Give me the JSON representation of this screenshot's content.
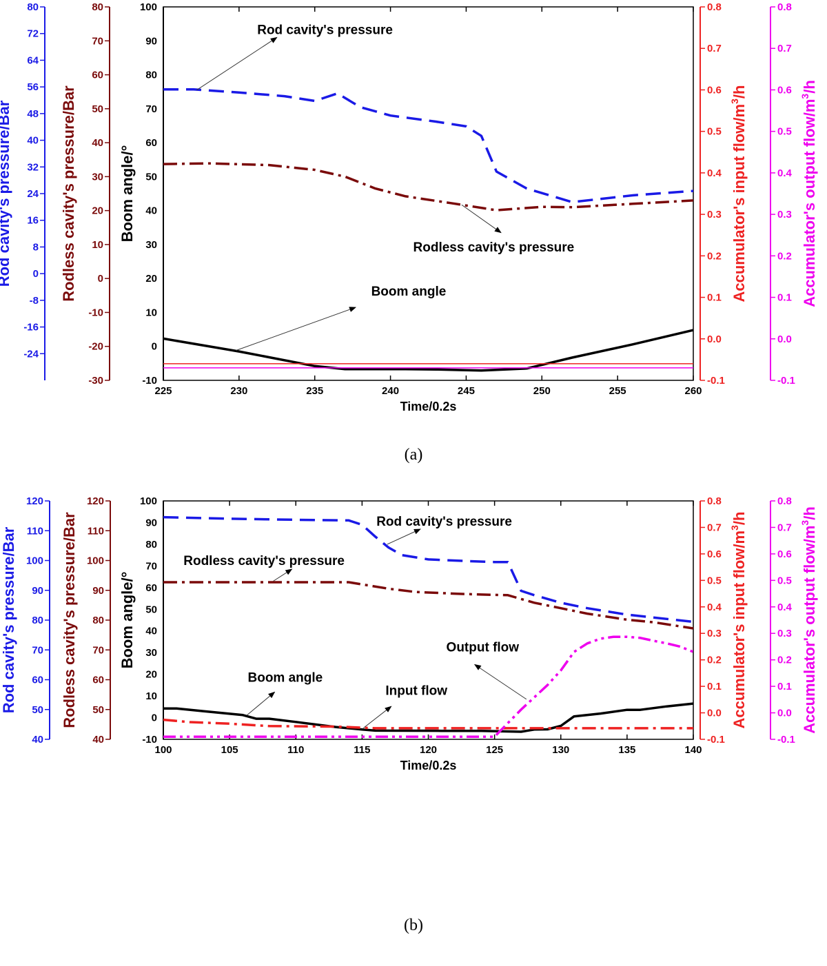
{
  "colors": {
    "rod": "#1a1ae6",
    "rodless": "#7a0a0a",
    "boom": "#000000",
    "input": "#ee2222",
    "output": "#ee00ee"
  },
  "axis_labels": {
    "rod": "Rod cavity's pressure/Bar",
    "rodless": "Rodless cavity's pressure/Bar",
    "boom": "Boom angle/°",
    "input_prefix": "Accumulator's input flow/m",
    "output_prefix": "Accumulator's output flow/m",
    "sup": "3",
    "suffix": "/h",
    "time": "Time/0.2s"
  },
  "chart_data": [
    {
      "id": "a",
      "type": "line",
      "caption": "(a)",
      "xlabel": "Time/0.2s",
      "xlim": [
        225,
        260
      ],
      "xticks": [
        225,
        230,
        235,
        240,
        245,
        250,
        255,
        260
      ],
      "axes": {
        "boom": {
          "range": [
            -10,
            100
          ],
          "ticks": [
            -10,
            0,
            10,
            20,
            30,
            40,
            50,
            60,
            70,
            80,
            90,
            100
          ]
        },
        "rodless": {
          "range": [
            -30,
            80
          ],
          "ticks": [
            -30,
            -20,
            -10,
            0,
            10,
            20,
            30,
            40,
            50,
            60,
            70,
            80
          ]
        },
        "rod": {
          "range": [
            -32,
            80
          ],
          "ticks": [
            -24,
            -16,
            -8,
            0,
            8,
            16,
            24,
            32,
            40,
            48,
            56,
            64,
            72,
            80
          ]
        },
        "input": {
          "range": [
            -0.1,
            0.8
          ],
          "ticks": [
            -0.1,
            0.0,
            0.1,
            0.2,
            0.3,
            0.4,
            0.5,
            0.6,
            0.7,
            0.8
          ]
        },
        "output": {
          "range": [
            -0.1,
            0.8
          ],
          "ticks": [
            -0.1,
            0.0,
            0.1,
            0.2,
            0.3,
            0.4,
            0.5,
            0.6,
            0.7,
            0.8
          ]
        }
      },
      "series": [
        {
          "name": "Rod cavity's pressure",
          "axis": "boom",
          "style": "dash",
          "color": "rod",
          "x": [
            225,
            227,
            230,
            233,
            235,
            236.5,
            238,
            240,
            243,
            245,
            246,
            247,
            249,
            252,
            256,
            260
          ],
          "y": [
            75.7,
            75.7,
            74.8,
            73.7,
            72.3,
            74.5,
            70.5,
            68,
            66.2,
            64.8,
            62,
            51.5,
            46.5,
            42.5,
            44.5,
            45.8
          ]
        },
        {
          "name": "Rodless cavity's pressure",
          "axis": "boom",
          "style": "dashdot",
          "color": "rodless",
          "x": [
            225,
            228,
            232,
            235,
            237,
            239,
            241,
            244,
            247,
            250,
            252,
            256,
            260
          ],
          "y": [
            53.7,
            53.9,
            53.4,
            52,
            50,
            46.5,
            44.2,
            42.2,
            40.1,
            41.1,
            41,
            42,
            43
          ]
        },
        {
          "name": "Boom angle",
          "axis": "boom",
          "style": "solid",
          "color": "boom",
          "x": [
            225,
            230,
            235,
            237,
            241,
            243,
            246,
            249,
            252,
            256,
            260
          ],
          "y": [
            2.3,
            -1.5,
            -5.8,
            -6.7,
            -6.7,
            -6.8,
            -7.1,
            -6.5,
            -3.3,
            0.6,
            4.8
          ]
        },
        {
          "name": "Input flow",
          "axis": "input",
          "style": "thin",
          "color": "input",
          "x": [
            225,
            260
          ],
          "y": [
            -0.06,
            -0.06
          ]
        },
        {
          "name": "Output flow",
          "axis": "output",
          "style": "thin",
          "color": "output",
          "x": [
            225,
            260
          ],
          "y": [
            -0.07,
            -0.07
          ]
        }
      ],
      "annotations": [
        {
          "text": "Rod cavity's pressure",
          "tx": 231.2,
          "ty": 92,
          "anchor": "start",
          "ax": 227.2,
          "ay": 75.5,
          "hx": 232.5,
          "hy": 91
        },
        {
          "text": "Rodless cavity's pressure",
          "tx": 241.5,
          "ty": 28,
          "anchor": "start",
          "ax": 244.7,
          "ay": 41.7,
          "hx": 247.3,
          "hy": 33.5
        },
        {
          "text": "Boom angle",
          "tx": 241.2,
          "ty": 15,
          "anchor": "middle",
          "ax": 229.8,
          "ay": -1.2,
          "hx": 237.7,
          "hy": 11.5
        }
      ]
    },
    {
      "id": "b",
      "type": "line",
      "caption": "(b)",
      "xlabel": "Time/0.2s",
      "xlim": [
        100,
        140
      ],
      "xticks": [
        100,
        105,
        110,
        115,
        120,
        125,
        130,
        135,
        140
      ],
      "axes": {
        "boom": {
          "range": [
            -10,
            100
          ],
          "ticks": [
            -10,
            0,
            10,
            20,
            30,
            40,
            50,
            60,
            70,
            80,
            90,
            100
          ]
        },
        "rodless": {
          "range": [
            40,
            120
          ],
          "ticks": [
            40,
            50,
            60,
            70,
            80,
            90,
            100,
            110,
            120
          ]
        },
        "rod": {
          "range": [
            40,
            120
          ],
          "ticks": [
            40,
            50,
            60,
            70,
            80,
            90,
            100,
            110,
            120
          ]
        },
        "input": {
          "range": [
            -0.1,
            0.8
          ],
          "ticks": [
            -0.1,
            0.0,
            0.1,
            0.2,
            0.3,
            0.4,
            0.5,
            0.6,
            0.7,
            0.8
          ]
        },
        "output": {
          "range": [
            -0.1,
            0.8
          ],
          "ticks": [
            -0.1,
            0.0,
            0.1,
            0.2,
            0.3,
            0.4,
            0.5,
            0.6,
            0.7,
            0.8
          ]
        }
      },
      "series": [
        {
          "name": "Rod cavity's pressure",
          "axis": "boom",
          "style": "dash",
          "color": "rod",
          "x": [
            100,
            105,
            110,
            114,
            115,
            116,
            117,
            118,
            120,
            123,
            125,
            126,
            127,
            128,
            130,
            132,
            135,
            137,
            140
          ],
          "y": [
            92.5,
            91.8,
            91.3,
            91,
            89,
            83.5,
            78.5,
            75,
            73,
            72.2,
            71.8,
            71.8,
            58.5,
            56.5,
            53,
            50.5,
            47.5,
            46.2,
            44.2
          ]
        },
        {
          "name": "Rodless cavity's pressure",
          "axis": "boom",
          "style": "dashdot",
          "color": "rodless",
          "x": [
            100,
            105,
            110,
            114,
            117,
            119,
            122,
            124,
            126,
            128,
            130,
            132,
            135,
            137,
            140
          ],
          "y": [
            62.5,
            62.5,
            62.5,
            62.5,
            59.5,
            58,
            57.2,
            56.8,
            56.5,
            53,
            50.5,
            48,
            45.2,
            44,
            41.2
          ]
        },
        {
          "name": "Boom angle",
          "axis": "boom",
          "style": "solid",
          "color": "boom",
          "x": [
            100,
            101,
            103,
            106,
            107,
            108,
            110,
            113,
            115,
            116,
            121,
            124,
            127,
            128,
            129,
            130,
            131,
            133,
            135,
            136,
            138,
            140
          ],
          "y": [
            4.2,
            4.2,
            3,
            1.2,
            -0.5,
            -0.5,
            -2,
            -4.3,
            -5.5,
            -6,
            -6.1,
            -6.1,
            -6.5,
            -5.5,
            -5.4,
            -3.8,
            0.6,
            1.9,
            3.6,
            3.6,
            5.2,
            6.5
          ]
        },
        {
          "name": "Input flow",
          "axis": "input",
          "style": "dashdot",
          "color": "input",
          "x": [
            100,
            102,
            105,
            108,
            113,
            116,
            120,
            125,
            130,
            135,
            140
          ],
          "y": [
            -0.026,
            -0.035,
            -0.041,
            -0.05,
            -0.052,
            -0.058,
            -0.058,
            -0.058,
            -0.058,
            -0.058,
            -0.058
          ]
        },
        {
          "name": "Output flow",
          "axis": "output",
          "style": "dashdotdot",
          "color": "output",
          "x": [
            100,
            110,
            120,
            125,
            127,
            129,
            130,
            131,
            132,
            133,
            134,
            135,
            136,
            137,
            138,
            139,
            140
          ],
          "y": [
            -0.09,
            -0.09,
            -0.09,
            -0.09,
            0.012,
            0.105,
            0.16,
            0.23,
            0.262,
            0.28,
            0.287,
            0.287,
            0.283,
            0.272,
            0.262,
            0.25,
            0.23
          ]
        }
      ],
      "annotations": [
        {
          "text": "Rod cavity's pressure",
          "tx": 121.2,
          "ty": 88.5,
          "anchor": "middle",
          "ax": 116.9,
          "ay": 80,
          "hx": 119.4,
          "hy": 87
        },
        {
          "text": "Rodless cavity's pressure",
          "tx": 107.6,
          "ty": 70.5,
          "anchor": "middle",
          "ax": 108.3,
          "ay": 63,
          "hx": 109.7,
          "hy": 68.5
        },
        {
          "text": "Boom angle",
          "tx": 109.2,
          "ty": 16.5,
          "anchor": "middle",
          "ax": 106.3,
          "ay": 1.1,
          "hx": 108.4,
          "hy": 11.8
        },
        {
          "text": "Input flow",
          "tx": 119.1,
          "ty": 10.5,
          "anchor": "middle",
          "ax": 115.1,
          "ay": -4.8,
          "hx": 117.2,
          "hy": 5.2
        },
        {
          "text": "Output flow",
          "tx": 124.1,
          "ty": 30.5,
          "anchor": "middle",
          "ax": 127.4,
          "ay": 8.5,
          "hx": 123.5,
          "hy": 24.5
        }
      ]
    }
  ]
}
